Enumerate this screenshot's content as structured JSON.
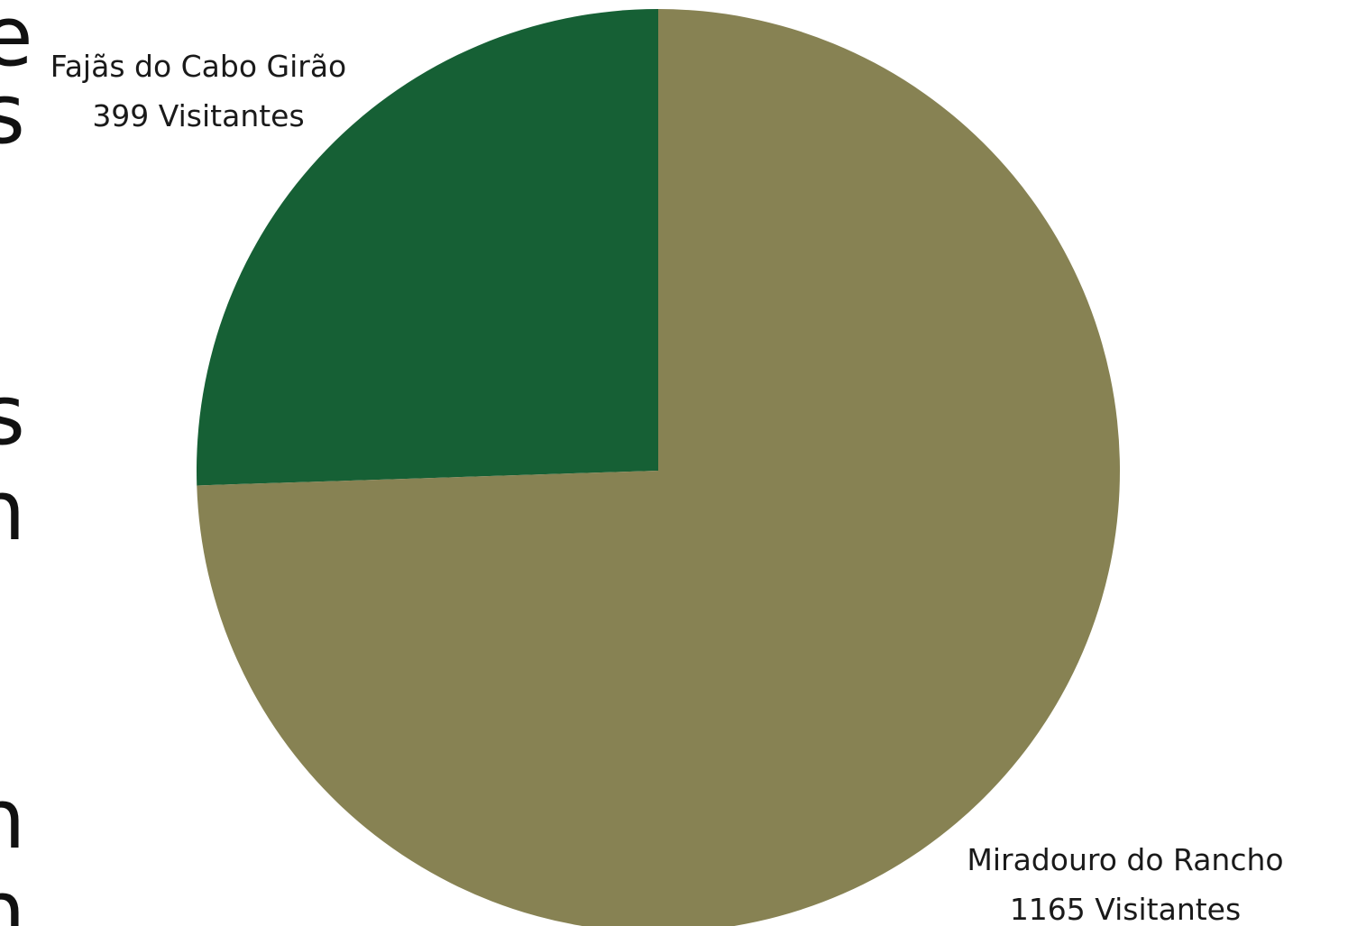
{
  "chart_data": {
    "type": "pie",
    "start": "12 o'clock",
    "direction": "counter-clockwise",
    "slices": [
      {
        "name": "Fajãs do Cabo Girão",
        "value": 399,
        "value_label": "399 Visitantes",
        "color": "#166035"
      },
      {
        "name": "Miradouro do Rancho",
        "value": 1165,
        "value_label": "1165 Visitantes",
        "color": "#878253"
      }
    ]
  },
  "edge_text": {
    "glyphs": [
      "e",
      "s",
      "s",
      "n",
      "n",
      "n"
    ]
  }
}
